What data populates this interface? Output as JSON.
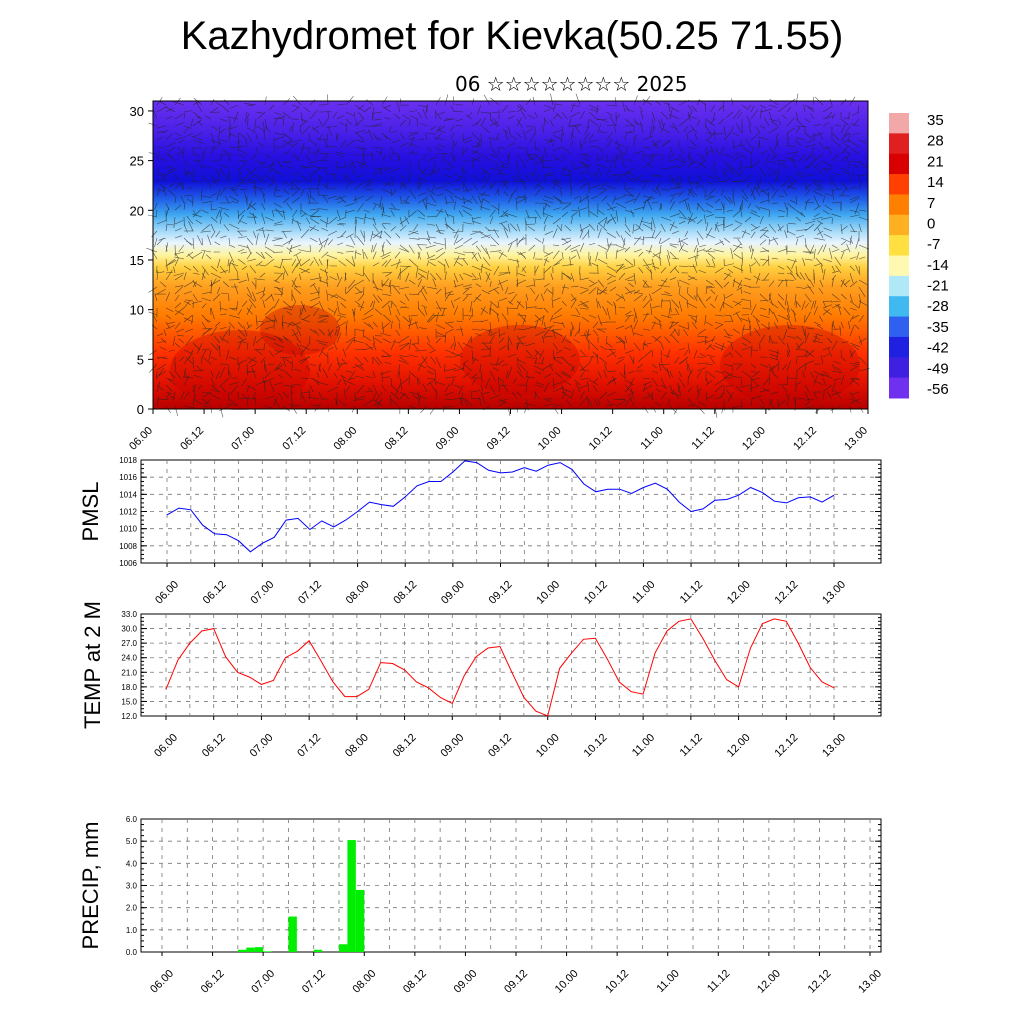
{
  "header": {
    "title": "Kazhydromet for Kievka(50.25 71.55)",
    "subtitle": "06 ☆☆☆☆☆☆☆☆ 2025"
  },
  "chart_data": [
    {
      "type": "heatmap",
      "description_level": "height cross-section",
      "x_tick_labels": [
        "06.00",
        "06.12",
        "07.00",
        "07.12",
        "08.00",
        "08.12",
        "09.00",
        "09.12",
        "10.00",
        "10.12",
        "11.00",
        "11.12",
        "12.00",
        "12.12",
        "13.00"
      ],
      "y_ticks": [
        0,
        5,
        10,
        15,
        20,
        25,
        30
      ],
      "ylim": [
        0,
        31
      ],
      "colorbar_labels": [
        "35",
        "28",
        "21",
        "14",
        "7",
        "0",
        "-7",
        "-14",
        "-21",
        "-28",
        "-35",
        "-42",
        "-49",
        "-56"
      ],
      "colorbar_colors": [
        "#f2a8a8",
        "#e02020",
        "#d80000",
        "#ff4000",
        "#ff8000",
        "#ffb020",
        "#ffe040",
        "#fff8b0",
        "#b0e8f8",
        "#40b8f0",
        "#3060f0",
        "#2020e0",
        "#4020e0",
        "#7030f0"
      ],
      "overlay": "wind vectors"
    },
    {
      "type": "line",
      "ylabel": "PMSL",
      "ylim": [
        1006,
        1018
      ],
      "y_ticks": [
        "1006",
        "1008",
        "1010",
        "1012",
        "1014",
        "1016",
        "1018"
      ],
      "x_tick_labels": [
        "06.00",
        "06.12",
        "07.00",
        "07.12",
        "08.00",
        "08.12",
        "09.00",
        "09.12",
        "10.00",
        "10.12",
        "11.00",
        "11.12",
        "12.00",
        "12.12",
        "13.00"
      ],
      "color": "#0000ff",
      "values": [
        1011.6,
        1012.4,
        1012.2,
        1010.4,
        1009.4,
        1009.3,
        1008.6,
        1007.3,
        1008.3,
        1009.0,
        1011.0,
        1011.2,
        1009.9,
        1010.9,
        1010.2,
        1011.0,
        1012.0,
        1013.1,
        1012.8,
        1012.6,
        1013.7,
        1015.0,
        1015.5,
        1015.5,
        1016.6,
        1017.9,
        1017.7,
        1016.8,
        1016.5,
        1016.6,
        1017.1,
        1016.7,
        1017.4,
        1017.7,
        1016.9,
        1015.2,
        1014.3,
        1014.6,
        1014.6,
        1014.1,
        1014.8,
        1015.3,
        1014.6,
        1013.1,
        1012.0,
        1012.3,
        1013.3,
        1013.4,
        1013.9,
        1014.8,
        1014.2,
        1013.2,
        1013.0,
        1013.6,
        1013.7,
        1013.1,
        1013.9
      ],
      "x_start": 0.0
    },
    {
      "type": "line",
      "ylabel": "TEMP at 2 M",
      "ylim": [
        12,
        33
      ],
      "y_ticks": [
        "12.0",
        "15.0",
        "18.0",
        "21.0",
        "24.0",
        "27.0",
        "30.0",
        "33.0"
      ],
      "x_tick_labels": [
        "06.00",
        "06.12",
        "07.00",
        "07.12",
        "08.00",
        "08.12",
        "09.00",
        "09.12",
        "10.00",
        "10.12",
        "11.00",
        "11.12",
        "12.00",
        "12.12",
        "13.00"
      ],
      "color": "#ff0000",
      "values": [
        17.5,
        23.5,
        27.0,
        29.5,
        30.0,
        24.2,
        21.0,
        20.0,
        18.5,
        19.3,
        24.0,
        25.3,
        27.5,
        23.3,
        19.0,
        16.0,
        16.0,
        17.5,
        23.0,
        22.8,
        21.5,
        19.0,
        17.8,
        15.8,
        14.6,
        20.3,
        24.2,
        26.0,
        26.3,
        21.0,
        15.8,
        13.0,
        12.0,
        21.8,
        25.0,
        27.8,
        28.0,
        23.7,
        19.0,
        17.0,
        16.5,
        25.0,
        29.5,
        31.5,
        32.0,
        28.0,
        23.5,
        19.5,
        18.0,
        26.0,
        31.0,
        32.0,
        31.5,
        27.0,
        22.0,
        19.0,
        17.8
      ],
      "x_start": 0.0
    },
    {
      "type": "bar",
      "ylabel": "PRECIP, mm",
      "ylim": [
        0,
        6
      ],
      "y_ticks": [
        "0.0",
        "1.0",
        "2.0",
        "3.0",
        "4.0",
        "5.0",
        "6.0"
      ],
      "x_tick_labels": [
        "06.00",
        "06.12",
        "07.00",
        "07.12",
        "08.00",
        "08.12",
        "09.00",
        "09.12",
        "10.00",
        "10.12",
        "11.00",
        "11.12",
        "12.00",
        "12.12",
        "13.00"
      ],
      "color": "#00ee00",
      "bars": [
        {
          "t": 18.0,
          "v": 0.1
        },
        {
          "t": 20.0,
          "v": 0.2
        },
        {
          "t": 22.0,
          "v": 0.22
        },
        {
          "t": 24.0,
          "v": 0.03
        },
        {
          "t": 30.0,
          "v": 1.6
        },
        {
          "t": 36.0,
          "v": 0.1
        },
        {
          "t": 42.0,
          "v": 0.35
        },
        {
          "t": 44.0,
          "v": 5.05
        },
        {
          "t": 46.0,
          "v": 2.8
        }
      ]
    }
  ]
}
